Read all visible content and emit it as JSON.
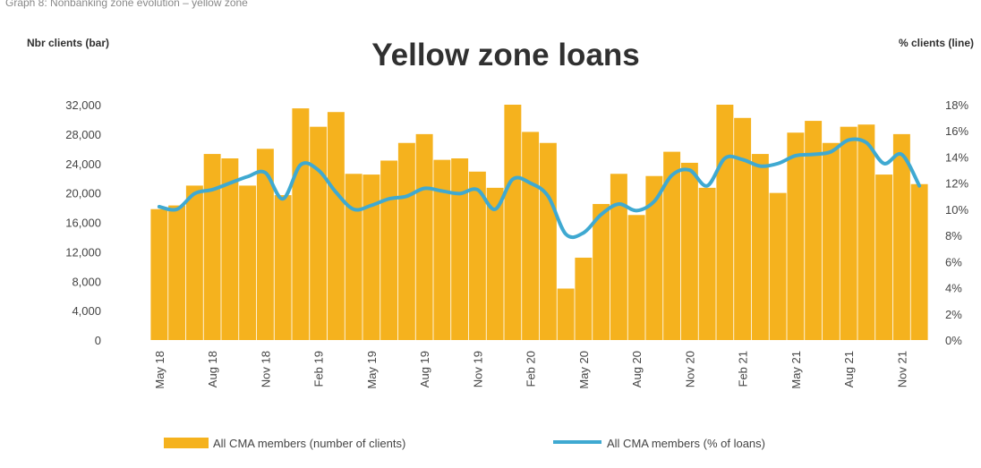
{
  "page": {
    "caption": "Graph 8: Nonbanking zone evolution – yellow zone"
  },
  "chart_data": {
    "type": "bar",
    "title": "Yellow zone loans",
    "y_left_label": "Nbr clients (bar)",
    "y_right_label": "% clients (line)",
    "y_left_ticks": [
      "32,000",
      "28,000",
      "24,000",
      "20,000",
      "16,000",
      "12,000",
      "8,000",
      "4,000",
      "0"
    ],
    "y_right_ticks": [
      "18%",
      "16%",
      "14%",
      "12%",
      "10%",
      "8%",
      "6%",
      "4%",
      "2%",
      "0%"
    ],
    "ylim_left": [
      0,
      32000
    ],
    "ylim_right": [
      0,
      18
    ],
    "categories": [
      "May 18",
      "Jun 18",
      "Jul 18",
      "Aug 18",
      "Sep 18",
      "Oct 18",
      "Nov 18",
      "Dec 18",
      "Jan 19",
      "Feb 19",
      "Mar 19",
      "Apr 19",
      "May 19",
      "Jun 19",
      "Jul 19",
      "Aug 19",
      "Sep 19",
      "Oct 19",
      "Nov 19",
      "Dec 19",
      "Jan 20",
      "Feb 20",
      "Mar 20",
      "Apr 20",
      "May 20",
      "Jun 20",
      "Jul 20",
      "Aug 20",
      "Sep 20",
      "Oct 20",
      "Nov 20",
      "Dec 20",
      "Jan 21",
      "Feb 21",
      "Mar 21",
      "Apr 21",
      "May 21",
      "Jun 21",
      "Jul 21",
      "Aug 21",
      "Sep 21",
      "Oct 21",
      "Nov 21",
      "Dec 21"
    ],
    "x_tick_labels": [
      "May 18",
      "Aug 18",
      "Nov 18",
      "Feb 19",
      "May 19",
      "Aug 19",
      "Nov 19",
      "Feb 20",
      "May 20",
      "Aug 20",
      "Nov 20",
      "Feb 21",
      "May 21",
      "Aug 21",
      "Nov 21"
    ],
    "x_tick_indices": [
      0,
      3,
      6,
      9,
      12,
      15,
      18,
      21,
      24,
      27,
      30,
      33,
      36,
      39,
      42
    ],
    "series": [
      {
        "name": "All CMA members (number of clients)",
        "type": "bar",
        "axis": "left",
        "color": "#F5B21E",
        "values": [
          17800,
          18300,
          21000,
          25300,
          24700,
          21000,
          26000,
          19700,
          31500,
          29000,
          31000,
          22600,
          22500,
          24400,
          26800,
          28000,
          24500,
          24700,
          22900,
          20700,
          32000,
          28300,
          26800,
          7000,
          11200,
          18500,
          22600,
          17000,
          22300,
          25600,
          24100,
          20700,
          32000,
          30200,
          25300,
          20000,
          28200,
          29800,
          26800,
          29000,
          29300,
          22500,
          28000,
          21200
        ]
      },
      {
        "name": "All CMA members (% of loans)",
        "type": "line",
        "axis": "right",
        "color": "#3FA9D1",
        "values": [
          10.2,
          10.0,
          11.2,
          11.5,
          12.0,
          12.5,
          12.8,
          10.8,
          13.4,
          13.0,
          11.3,
          10.0,
          10.3,
          10.8,
          11.0,
          11.6,
          11.4,
          11.2,
          11.5,
          10.0,
          12.3,
          12.0,
          11.0,
          8.1,
          8.2,
          9.6,
          10.4,
          9.9,
          10.6,
          12.6,
          13.0,
          11.8,
          13.9,
          13.8,
          13.3,
          13.5,
          14.1,
          14.2,
          14.4,
          15.3,
          15.1,
          13.5,
          14.2,
          11.8
        ]
      }
    ],
    "legend_position": "bottom",
    "grid": false
  }
}
